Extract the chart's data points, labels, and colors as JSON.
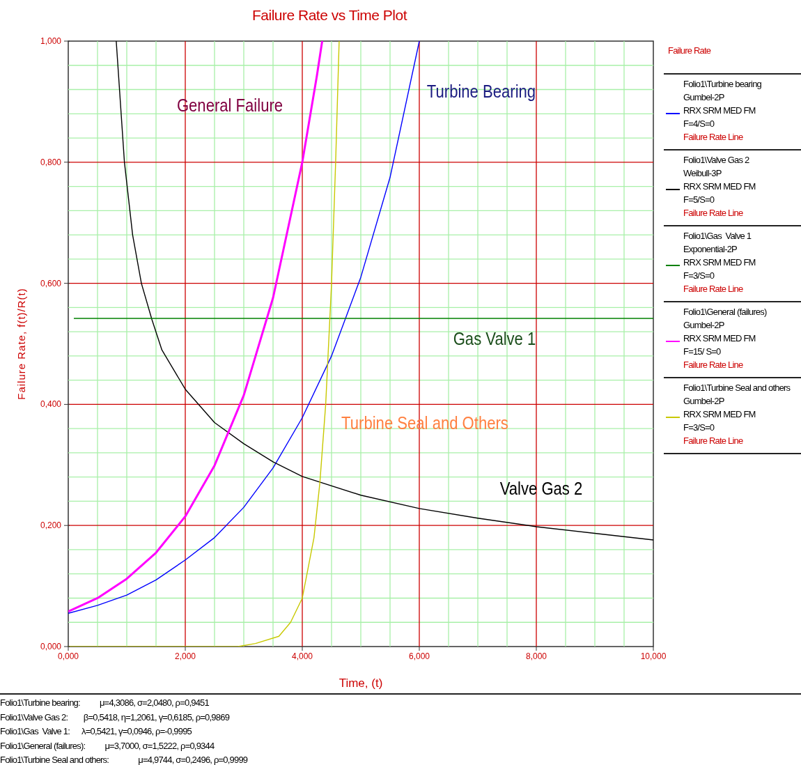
{
  "chart_data": {
    "type": "line",
    "title": "Failure Rate vs Time Plot",
    "xlabel": "Time, (t)",
    "ylabel": "Failure Rate, f(t)/R(t)",
    "legend_title": "Failure Rate",
    "legend": "right",
    "grid": true,
    "marker": "none",
    "line_style": "solid",
    "xlim": [
      0,
      10
    ],
    "xticks": [
      {
        "value": 0,
        "label": "0,000"
      },
      {
        "value": 0.5,
        "label": null
      },
      {
        "value": 1,
        "label": null
      },
      {
        "value": 1.5,
        "label": null
      },
      {
        "value": 2,
        "label": "2,000"
      },
      {
        "value": 2.5,
        "label": null
      },
      {
        "value": 3,
        "label": null
      },
      {
        "value": 3.5,
        "label": null
      },
      {
        "value": 4,
        "label": "4,000"
      },
      {
        "value": 4.5,
        "label": null
      },
      {
        "value": 5,
        "label": null
      },
      {
        "value": 5.5,
        "label": null
      },
      {
        "value": 6,
        "label": "6,000"
      },
      {
        "value": 6.5,
        "label": null
      },
      {
        "value": 7,
        "label": null
      },
      {
        "value": 7.5,
        "label": null
      },
      {
        "value": 8,
        "label": "8,000"
      },
      {
        "value": 8.5,
        "label": null
      },
      {
        "value": 9,
        "label": null
      },
      {
        "value": 9.5,
        "label": null
      },
      {
        "value": 10,
        "label": "10,000"
      }
    ],
    "ylim": [
      0,
      1
    ],
    "yticks": [
      {
        "value": 0,
        "label": "0,000"
      },
      {
        "value": 0.04,
        "label": null
      },
      {
        "value": 0.08,
        "label": null
      },
      {
        "value": 0.12,
        "label": null
      },
      {
        "value": 0.16,
        "label": null
      },
      {
        "value": 0.2,
        "label": "0,200"
      },
      {
        "value": 0.24,
        "label": null
      },
      {
        "value": 0.28,
        "label": null
      },
      {
        "value": 0.32,
        "label": null
      },
      {
        "value": 0.36,
        "label": null
      },
      {
        "value": 0.4,
        "label": "0,400"
      },
      {
        "value": 0.44,
        "label": null
      },
      {
        "value": 0.48,
        "label": null
      },
      {
        "value": 0.52,
        "label": null
      },
      {
        "value": 0.56,
        "label": null
      },
      {
        "value": 0.6,
        "label": "0,600"
      },
      {
        "value": 0.64,
        "label": null
      },
      {
        "value": 0.68,
        "label": null
      },
      {
        "value": 0.72,
        "label": null
      },
      {
        "value": 0.76,
        "label": null
      },
      {
        "value": 0.8,
        "label": "0,800"
      },
      {
        "value": 0.84,
        "label": null
      },
      {
        "value": 0.88,
        "label": null
      },
      {
        "value": 0.92,
        "label": null
      },
      {
        "value": 0.96,
        "label": null
      },
      {
        "value": 1,
        "label": "1,000"
      }
    ],
    "series": [
      {
        "name": "Folio1\\Turbine bearing\nGumbel-2P\nRRX SRM MED FM\nF=4/S=0\nFailure Rate Line",
        "color": "#0000ff",
        "x": [
          0,
          0.5,
          1,
          1.5,
          2,
          2.5,
          3,
          3.5,
          4,
          4.5,
          5,
          5.5,
          6
        ],
        "values": [
          0.055,
          0.068,
          0.085,
          0.11,
          0.143,
          0.18,
          0.23,
          0.295,
          0.378,
          0.48,
          0.61,
          0.775,
          1.0
        ]
      },
      {
        "name": "Folio1\\Valve Gas 2\nWeibull-3P\nRRX SRM MED FM\nF=5/S=0\nFailure Rate Line",
        "color": "#000000",
        "x": [
          0.82,
          0.96,
          1.1,
          1.25,
          1.43,
          1.6,
          2,
          2.5,
          3,
          3.5,
          4,
          5,
          6,
          7,
          8,
          9,
          10
        ],
        "values": [
          1.0,
          0.8,
          0.68,
          0.6,
          0.54,
          0.49,
          0.425,
          0.37,
          0.335,
          0.305,
          0.281,
          0.25,
          0.228,
          0.212,
          0.198,
          0.187,
          0.176
        ]
      },
      {
        "name": "Folio1\\Gas  Valve 1\nExponential-2P\nRRX SRM MED FM\nF=3/S=0\nFailure Rate Line",
        "color": "#008000",
        "x": [
          0.095,
          10
        ],
        "values": [
          0.542,
          0.542
        ]
      },
      {
        "name": "Folio1\\General (failures)\nGumbel-2P\nRRX SRM MED FM\nF=15/ S=0\nFailure Rate Line",
        "color": "#ff00ff",
        "x": [
          0,
          0.5,
          1,
          1.5,
          2,
          2.5,
          3,
          3.5,
          4,
          4.25,
          4.34
        ],
        "values": [
          0.058,
          0.08,
          0.112,
          0.155,
          0.215,
          0.299,
          0.415,
          0.576,
          0.8,
          0.943,
          1.0
        ]
      },
      {
        "name": "Folio1\\Turbine Seal and others\nGumbel-2P\nRRX SRM MED FM\nF=3/S=0\nFailure Rate Line",
        "color": "#c8c800",
        "x": [
          0,
          1,
          2,
          2.9,
          3.2,
          3.6,
          3.8,
          4,
          4.1,
          4.2,
          4.3,
          4.4,
          4.5,
          4.57,
          4.63
        ],
        "values": [
          0,
          0,
          0,
          0,
          0.005,
          0.017,
          0.04,
          0.08,
          0.13,
          0.18,
          0.27,
          0.4,
          0.6,
          0.8,
          1.0
        ]
      }
    ],
    "annotations": [
      "General Failure",
      "Turbine Bearing",
      "Gas Valve 1",
      "Turbine Seal and Others",
      "Valve Gas 2",
      "Folio1\\Turbine bearing:          μ=4,3086, σ=2,0480, ρ=0,9451",
      "Folio1\\Valve Gas 2:        β=0,5418, η=1,2061, γ=0,6185, ρ=0,9869",
      "Folio1\\Gas  Valve 1:      λ=0,5421, γ=0,0946, ρ=-0,9995",
      "Folio1\\General (failures):          μ=3,7000, σ=1,5222, ρ=0,9344",
      "Folio1\\Turbine Seal and others:               μ=4,9744, σ=0,2496, ρ=0,9999"
    ]
  }
}
